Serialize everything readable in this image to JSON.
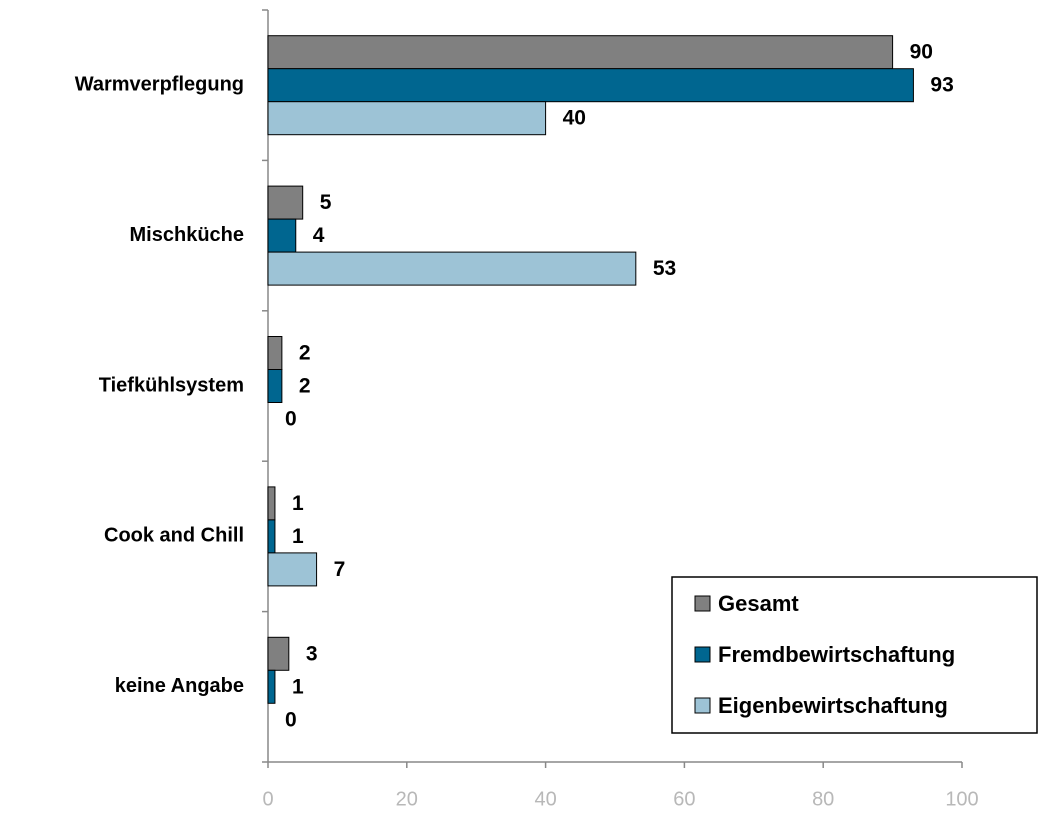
{
  "chart_data": {
    "type": "bar",
    "orientation": "horizontal",
    "categories": [
      "Warmverpflegung",
      "Mischküche",
      "Tiefkühlsystem",
      "Cook and Chill",
      "keine Angabe"
    ],
    "series": [
      {
        "name": "Gesamt",
        "color": "#808080",
        "values": [
          90,
          5,
          2,
          1,
          3
        ]
      },
      {
        "name": "Fremdbewirtschaftung",
        "color": "#006690",
        "values": [
          93,
          4,
          2,
          1,
          1
        ]
      },
      {
        "name": "Eigenbewirtschaftung",
        "color": "#9dc3d6",
        "values": [
          40,
          53,
          0,
          7,
          0
        ]
      }
    ],
    "xlim": [
      0,
      100
    ],
    "xticks": [
      0,
      20,
      40,
      60,
      80,
      100
    ],
    "legend": "lower right",
    "data_labels": true
  }
}
